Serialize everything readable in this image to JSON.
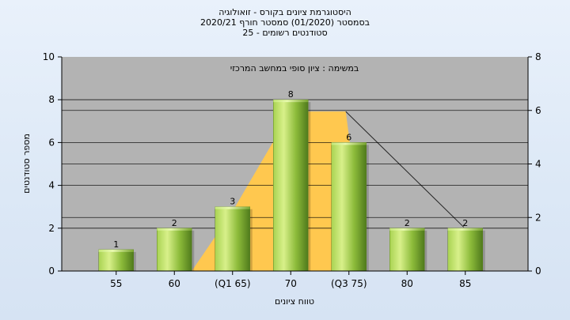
{
  "header": {
    "title_line1": "היסטוגרמת ציונים בקורס - זואולוגיה",
    "title_line2": "בסמסטר  (01/2020)  סמסטר חורף  2020/21",
    "title_line3": "סטודנטים רשומים - 25"
  },
  "chart_data": {
    "type": "bar",
    "categories": [
      "55",
      "60",
      "(Q1 65)",
      "70",
      "(Q3 75)",
      "80",
      "85"
    ],
    "values": [
      1,
      2,
      3,
      8,
      6,
      2,
      2
    ],
    "data_labels": [
      "1",
      "2",
      "3",
      "8",
      "6",
      "2",
      "2"
    ],
    "xlabel": "טווח ציונים",
    "ylabel": "מספר סטודנטים",
    "ylim": [
      0,
      10
    ],
    "y_ticks": [
      "0",
      "2",
      "4",
      "6",
      "8",
      "10"
    ],
    "y2lim": [
      0,
      8
    ],
    "y2_ticks": [
      "0",
      "2",
      "4",
      "6",
      "8"
    ],
    "annotation": "במשימה : ציון סופי במחשב המרכזי",
    "grid": true,
    "colors": {
      "plot_background": "#b3b3b3",
      "bar_light": "#d8f08a",
      "bar_dark": "#4f7a1c",
      "distribution_fill": "#ffc84f",
      "reference_lines": "#222222"
    }
  }
}
